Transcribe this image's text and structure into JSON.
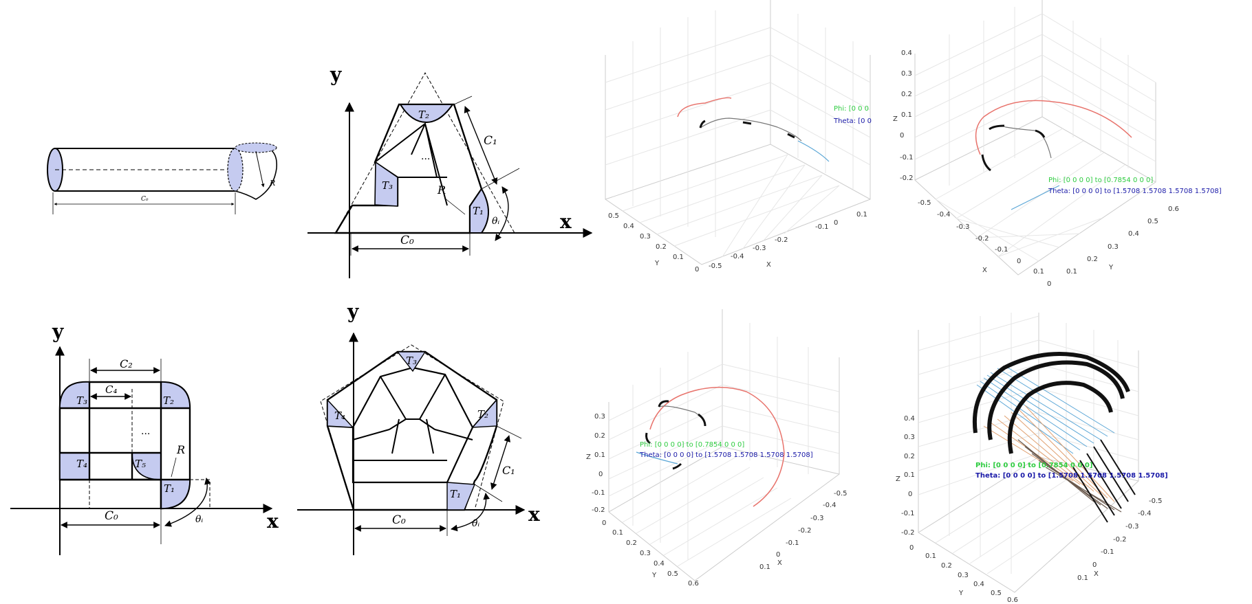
{
  "cylinder": {
    "length_label": "C₀",
    "radius_label": "R"
  },
  "triangle": {
    "axis_y": "y",
    "axis_x": "x",
    "labels": {
      "t1": "T₁",
      "t2": "T₂",
      "t3": "T₃",
      "c0": "C₀",
      "c1": "C₁",
      "r": "R",
      "theta": "θᵢ",
      "dots": "..."
    }
  },
  "square": {
    "axis_y": "y",
    "axis_x": "x",
    "labels": {
      "t1": "T₁",
      "t2": "T₂",
      "t3": "T₃",
      "t4": "T₄",
      "t5": "T₅",
      "c0": "C₀",
      "c2": "C₂",
      "c4": "C₄",
      "r": "R",
      "theta": "θᵢ",
      "dots": "..."
    }
  },
  "pentagon": {
    "axis_y": "y",
    "axis_x": "x",
    "labels": {
      "t1": "T₁",
      "t2": "T₂",
      "t3": "T₃",
      "t4": "T₄",
      "c0": "C₀",
      "c1": "C₁",
      "theta": "θᵢ"
    }
  },
  "plots": [
    {
      "phi_text": "Phi: [0  0  0",
      "theta_text": "Theta: [0  0",
      "y_axis_label": "Y",
      "x_axis_label": "X",
      "z_axis_label": "",
      "y_ticks": [
        "0.5",
        "0.4",
        "0.3",
        "0.2",
        "0.1",
        "0"
      ],
      "x_ticks": [
        "-0.5",
        "-0.4",
        "-0.3",
        "-0.2",
        "-0.1",
        "0",
        "0.1"
      ],
      "z_ticks": []
    },
    {
      "phi_text": "Phi: [0  0  0  0] to [0.7854        0          0          0]",
      "theta_text": "Theta: [0  0  0  0] to [1.5708      1.5708     1.5708     1.5708]",
      "y_axis_label": "Y",
      "x_axis_label": "X",
      "z_axis_label": "Z",
      "z_ticks": [
        "0.4",
        "0.3",
        "0.2",
        "0.1",
        "0",
        "-0.1",
        "-0.2"
      ],
      "x_ticks": [
        "-0.5",
        "-0.4",
        "-0.3",
        "-0.2",
        "-0.1",
        "0",
        "0.1"
      ],
      "y_ticks": [
        "0",
        "0.1",
        "0.2",
        "0.3",
        "0.4",
        "0.5",
        "0.6"
      ]
    },
    {
      "phi_text": "Phi: [0  0  0  0] to [0.7854        0          0          0]",
      "theta_text": "Theta: [0  0  0  0] to [1.5708      1.5708     1.5708     1.5708]",
      "y_axis_label": "Y",
      "x_axis_label": "X",
      "z_axis_label": "Z",
      "z_ticks": [
        "0.3",
        "0.2",
        "0.1",
        "0",
        "-0.1",
        "-0.2"
      ],
      "y_ticks": [
        "0",
        "0.1",
        "0.2",
        "0.3",
        "0.4",
        "0.5",
        "0.6"
      ],
      "x_ticks": [
        "-0.5",
        "-0.4",
        "-0.3",
        "-0.2",
        "-0.1",
        "0",
        "0.1"
      ]
    },
    {
      "phi_text": "Phi: [0  0  0  0] to [0.7854        0          0          0]",
      "theta_text": "Theta: [0  0  0  0] to [1.5708      1.5708     1.5708     1.5708]",
      "y_axis_label": "Y",
      "x_axis_label": "X",
      "z_axis_label": "Z",
      "z_ticks": [
        "0.4",
        "0.3",
        "0.2",
        "0.1",
        "0",
        "-0.1",
        "-0.2"
      ],
      "y_ticks": [
        "0",
        "0.1",
        "0.2",
        "0.3",
        "0.4",
        "0.5",
        "0.6"
      ],
      "x_ticks": [
        "-0.5",
        "-0.4",
        "-0.3",
        "-0.2",
        "-0.1",
        "0",
        "0.1"
      ]
    }
  ],
  "colors": {
    "fill": "#c5cbf0",
    "phi": "#2ecc40",
    "theta": "#1a1aa8",
    "curve_red": "#e8736c",
    "curve_blue": "#5aa6d6"
  }
}
